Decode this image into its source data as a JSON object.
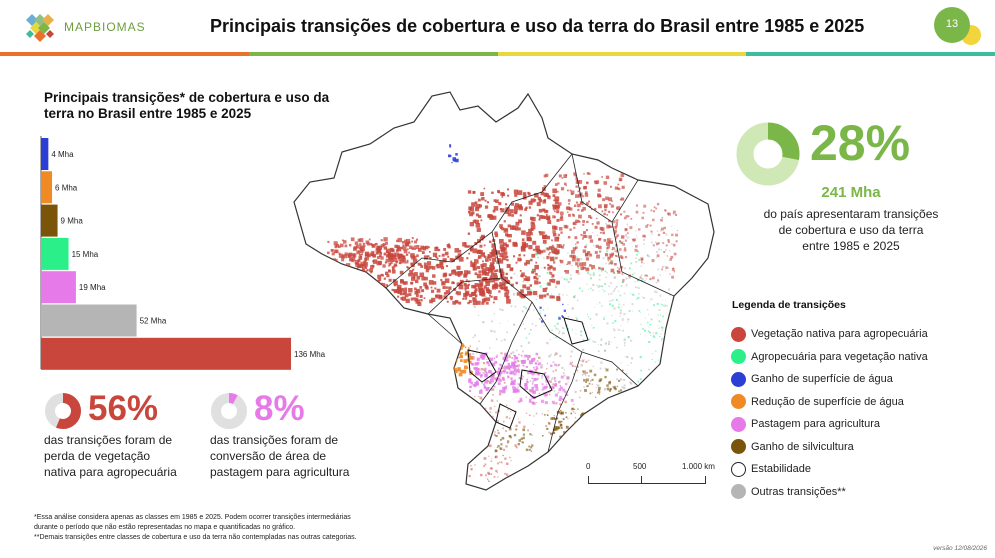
{
  "header": {
    "logo_text": "MAPBIOMAS",
    "title": "Principais transições de cobertura e uso da terra do Brasil entre 1985 e 2025",
    "page_number": "13",
    "stripe_colors": [
      "#e9712a",
      "#7ab648",
      "#e8d83e",
      "#3dbca0"
    ]
  },
  "chart_data": {
    "type": "bar",
    "orientation": "horizontal",
    "title": "Principais transições* de cobertura e uso da terra no Brasil entre 1985 e 2025",
    "unit": "Mha",
    "bars": [
      {
        "value": 4,
        "label": "4  Mha",
        "color": "#2b3fd4"
      },
      {
        "value": 6,
        "label": "6  Mha",
        "color": "#f08a24"
      },
      {
        "value": 9,
        "label": "9 Mha",
        "color": "#7a5408"
      },
      {
        "value": 15,
        "label": "15  Mha",
        "color": "#2bf08a"
      },
      {
        "value": 19,
        "label": "19  Mha",
        "color": "#e57ae8"
      },
      {
        "value": 52,
        "label": "52  Mha",
        "color": "#b5b5b5"
      },
      {
        "value": 136,
        "label": "136  Mha",
        "color": "#c8463c"
      }
    ]
  },
  "stats": {
    "total": {
      "percent": "28%",
      "fraction": 0.28,
      "area": "241 Mha",
      "lines": [
        "do país apresentaram transições",
        "de cobertura e uso da terra",
        "entre 1985 e 2025"
      ],
      "color": "#7ab648",
      "track": "#cfe8b6"
    },
    "loss": {
      "percent": "56%",
      "fraction": 0.56,
      "lines": [
        "das transições foram de",
        "perda de vegetação",
        "nativa para agropecuária"
      ],
      "color": "#c8463c",
      "track": "#e0e0e0"
    },
    "pasture": {
      "percent": "8%",
      "fraction": 0.08,
      "lines": [
        "das transições foram de",
        "conversão de área de",
        "pastagem para agricultura"
      ],
      "color": "#e57ae8",
      "track": "#e0e0e0"
    }
  },
  "legend": {
    "title": "Legenda de transições",
    "items": [
      {
        "label": "Vegetação nativa para agropecuária",
        "color": "#c8463c"
      },
      {
        "label": "Agropecuária para vegetação nativa",
        "color": "#2bf08a"
      },
      {
        "label": "Ganho de superfície de água",
        "color": "#2b3fd4"
      },
      {
        "label": "Redução de superfície de água",
        "color": "#f08a24"
      },
      {
        "label": "Pastagem para agricultura",
        "color": "#e57ae8"
      },
      {
        "label": "Ganho de silvicultura",
        "color": "#7a5408"
      },
      {
        "label": "Estabilidade",
        "color": "#ffffff"
      },
      {
        "label": "Outras transições**",
        "color": "#b5b5b5"
      }
    ]
  },
  "scale": {
    "labels": [
      "0",
      "500",
      "1.000 km"
    ]
  },
  "footnotes": [
    "*Essa análise considera apenas as classes em 1985 e 2025. Podem ocorrer transições intermediárias",
    "durante o período que não estão representadas no mapa e quantificadas no gráfico.",
    "**Demais transições entre classes de cobertura e uso da terra não contempladas nas outras categorias."
  ],
  "version": "versão 12/08/2026"
}
